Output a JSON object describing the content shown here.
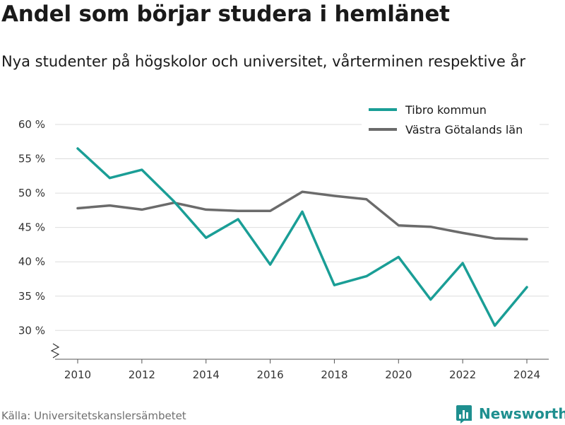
{
  "header": {
    "title": "Andel som börjar studera i hemlänet",
    "subtitle": "Nya studenter på högskolor och universitet, vårterminen respektive år"
  },
  "footer": {
    "source": "Källa: Universitetskanslersämbetet",
    "brand": "Newsworthy"
  },
  "colors": {
    "tibro": "#1a9e96",
    "vastra_gotaland": "#6b6b6b",
    "grid": "#dddddd",
    "brand": "#1e8f8f"
  },
  "chart_data": {
    "type": "line",
    "title": "Andel som börjar studera i hemlänet",
    "subtitle": "Nya studenter på högskolor och universitet, vårterminen respektive år",
    "xlabel": "",
    "ylabel": "",
    "x": [
      2010,
      2011,
      2012,
      2013,
      2014,
      2015,
      2016,
      2017,
      2018,
      2019,
      2020,
      2021,
      2022,
      2023,
      2024
    ],
    "xticks": [
      "2010",
      "2012",
      "2014",
      "2016",
      "2018",
      "2020",
      "2022",
      "2024"
    ],
    "yticks": [
      "30 %",
      "35 %",
      "40 %",
      "45 %",
      "50 %",
      "55 %",
      "60 %"
    ],
    "ylim": [
      25.5,
      60
    ],
    "grid": true,
    "legend_position": "top-right",
    "series": [
      {
        "name": "Tibro kommun",
        "color": "#1a9e96",
        "values": [
          56.5,
          52.2,
          53.4,
          48.8,
          43.5,
          46.2,
          39.6,
          47.3,
          36.6,
          37.9,
          40.7,
          34.5,
          39.8,
          30.7,
          36.3
        ]
      },
      {
        "name": "Västra Götalands län",
        "color": "#6b6b6b",
        "values": [
          47.8,
          48.2,
          47.6,
          48.6,
          47.6,
          47.4,
          47.4,
          50.2,
          49.6,
          49.1,
          45.3,
          45.1,
          44.2,
          43.4,
          43.3
        ]
      }
    ]
  }
}
